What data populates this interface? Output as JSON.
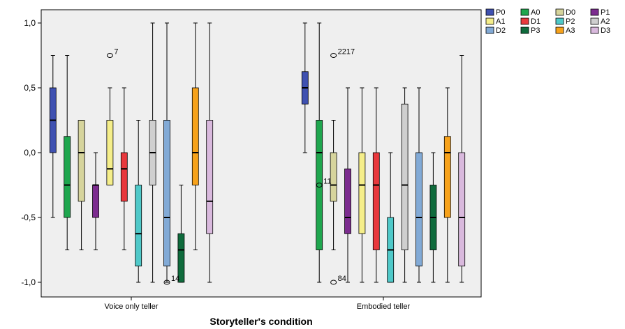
{
  "chart_data": {
    "type": "boxplot",
    "xlabel": "Storyteller's condition",
    "ylabel": "",
    "ylim": [
      -1.05,
      1.05
    ],
    "y_ticks": [
      {
        "value": 1.0,
        "label": "1,0"
      },
      {
        "value": 0.5,
        "label": "0,5"
      },
      {
        "value": 0.0,
        "label": "0,0"
      },
      {
        "value": -0.5,
        "label": "-0,5"
      },
      {
        "value": -1.0,
        "label": "-1,0"
      }
    ],
    "grid": false,
    "legend_position": "right",
    "categories": [
      "Voice only teller",
      "Embodied teller"
    ],
    "series": [
      {
        "name": "P0",
        "color": "#3f51b1",
        "boxes": [
          {
            "min": -0.5,
            "q1": 0.0,
            "median": 0.25,
            "q3": 0.5,
            "max": 0.75
          },
          {
            "min": 0.0,
            "q1": 0.375,
            "median": 0.5,
            "q3": 0.625,
            "max": 1.0
          }
        ]
      },
      {
        "name": "A0",
        "color": "#1fa64e",
        "boxes": [
          {
            "min": -0.75,
            "q1": -0.5,
            "median": -0.25,
            "q3": 0.125,
            "max": 0.75
          },
          {
            "min": -1.0,
            "q1": -0.75,
            "median": 0.0,
            "q3": 0.25,
            "max": 1.0
          }
        ]
      },
      {
        "name": "D0",
        "color": "#d6d49c",
        "boxes": [
          {
            "min": -0.75,
            "q1": -0.375,
            "median": 0.0,
            "q3": 0.25,
            "max": 0.25
          },
          {
            "min": -0.75,
            "q1": -0.375,
            "median": -0.25,
            "q3": 0.0,
            "max": 0.25
          }
        ]
      },
      {
        "name": "P1",
        "color": "#7c2c8f",
        "boxes": [
          {
            "min": -0.75,
            "q1": -0.5,
            "median": -0.25,
            "q3": -0.25,
            "max": 0.0
          },
          {
            "min": -1.0,
            "q1": -0.625,
            "median": -0.5,
            "q3": -0.125,
            "max": 0.5
          }
        ]
      },
      {
        "name": "A1",
        "color": "#f5ee8a",
        "boxes": [
          {
            "min": -0.25,
            "q1": -0.25,
            "median": -0.125,
            "q3": 0.25,
            "max": 0.5
          },
          {
            "min": -1.0,
            "q1": -0.625,
            "median": -0.25,
            "q3": 0.0,
            "max": 0.5
          }
        ]
      },
      {
        "name": "D1",
        "color": "#e8383d",
        "boxes": [
          {
            "min": -0.75,
            "q1": -0.375,
            "median": -0.125,
            "q3": 0.0,
            "max": 0.5
          },
          {
            "min": -1.0,
            "q1": -0.75,
            "median": -0.25,
            "q3": 0.0,
            "max": 0.5
          }
        ]
      },
      {
        "name": "P2",
        "color": "#4fc9c9",
        "boxes": [
          {
            "min": -1.0,
            "q1": -0.875,
            "median": -0.625,
            "q3": -0.25,
            "max": 0.25
          },
          {
            "min": -1.0,
            "q1": -1.0,
            "median": -0.75,
            "q3": -0.5,
            "max": 0.0
          }
        ]
      },
      {
        "name": "A2",
        "color": "#cfcfcf",
        "boxes": [
          {
            "min": -1.0,
            "q1": -0.25,
            "median": 0.0,
            "q3": 0.25,
            "max": 1.0
          },
          {
            "min": -1.0,
            "q1": -0.75,
            "median": -0.25,
            "q3": 0.375,
            "max": 0.5
          }
        ]
      },
      {
        "name": "D2",
        "color": "#82aad6",
        "boxes": [
          {
            "min": -1.0,
            "q1": -0.875,
            "median": -0.5,
            "q3": 0.25,
            "max": 1.0
          },
          {
            "min": -1.0,
            "q1": -0.875,
            "median": -0.5,
            "q3": 0.0,
            "max": 0.5
          }
        ]
      },
      {
        "name": "P3",
        "color": "#0f6b3c",
        "boxes": [
          {
            "min": -1.0,
            "q1": -1.0,
            "median": -0.75,
            "q3": -0.625,
            "max": -0.25
          },
          {
            "min": -1.0,
            "q1": -0.75,
            "median": -0.5,
            "q3": -0.25,
            "max": 0.0
          }
        ]
      },
      {
        "name": "A3",
        "color": "#f7a21b",
        "boxes": [
          {
            "min": -0.75,
            "q1": -0.25,
            "median": 0.0,
            "q3": 0.5,
            "max": 1.0
          },
          {
            "min": -1.0,
            "q1": -0.5,
            "median": 0.0,
            "q3": 0.125,
            "max": 0.5
          }
        ]
      },
      {
        "name": "D3",
        "color": "#d9b9dd",
        "boxes": [
          {
            "min": -1.0,
            "q1": -0.625,
            "median": -0.375,
            "q3": 0.25,
            "max": 1.0
          },
          {
            "min": -1.0,
            "q1": -0.875,
            "median": -0.5,
            "q3": 0.0,
            "max": 0.75
          }
        ]
      }
    ],
    "outliers": [
      {
        "category": 0,
        "series": "A1",
        "y": 0.75,
        "label": "7"
      },
      {
        "category": 0,
        "series": "D2",
        "y": -1.0,
        "label": "14"
      },
      {
        "category": 1,
        "series": "D0",
        "y": 0.75,
        "label": "2217"
      },
      {
        "category": 1,
        "series": "A0",
        "y": -0.25,
        "label": "11"
      },
      {
        "category": 1,
        "series": "D0",
        "y": -1.0,
        "label": "84"
      }
    ]
  }
}
